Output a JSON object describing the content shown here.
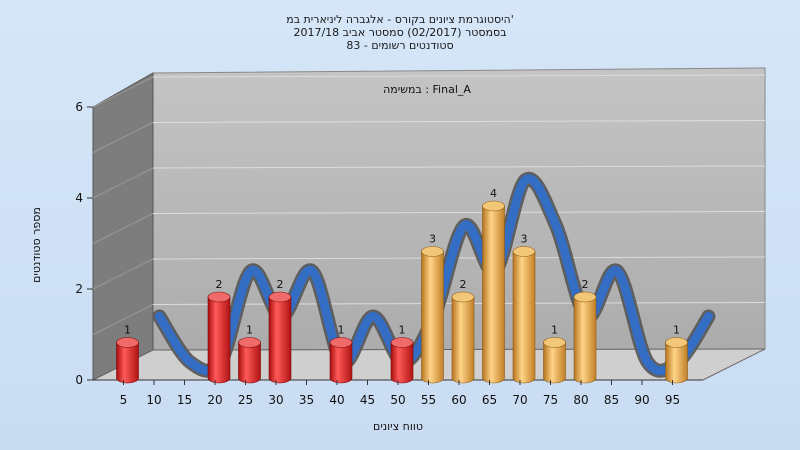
{
  "chart_data": {
    "type": "bar",
    "title_lines": [
      "היסטוגרמת ציונים בקורס - אלגברה ליניארית במ'",
      "בסמסטר  (02/2017)  סמסטר אביב 2017/18",
      "סטודנטים רשומים - 83"
    ],
    "annotation": "במשימה : Final_A",
    "xlabel": "טווח ציונים",
    "ylabel": "מספר סטודנטים",
    "ylim": [
      0,
      6
    ],
    "yticks": [
      0,
      2,
      4,
      6
    ],
    "categories": [
      "5",
      "10",
      "15",
      "20",
      "25",
      "30",
      "35",
      "40",
      "45",
      "50",
      "55",
      "60",
      "65",
      "70",
      "75",
      "80",
      "85",
      "90",
      "95"
    ],
    "values": [
      1,
      0,
      0,
      2,
      1,
      2,
      0,
      1,
      0,
      1,
      3,
      2,
      4,
      3,
      1,
      2,
      0,
      0,
      1
    ],
    "fail_threshold": 55,
    "colors": {
      "fail": "#e0191a",
      "pass": "#e8a33a",
      "trend_front": "#2f6fcf",
      "trend_back": "#5a5a5a",
      "wall": "#b9b9b9",
      "side_wall": "#7d7d7d"
    },
    "grid": true,
    "legend": "none"
  }
}
